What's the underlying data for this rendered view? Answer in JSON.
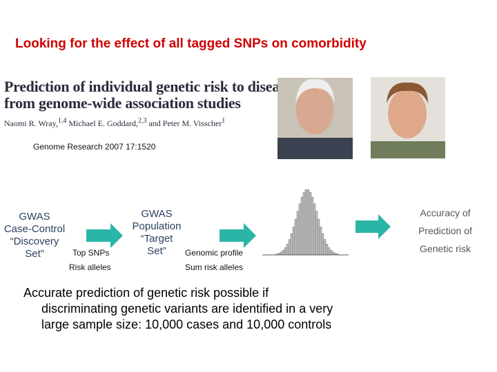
{
  "header": {
    "title": "Looking for the effect of all tagged SNPs on comorbidity"
  },
  "paper": {
    "title_lines": [
      "Prediction of individual genetic risk to disease",
      "from genome-wide association studies"
    ],
    "authors": [
      {
        "name": "Naomi R. Wray,",
        "sup": "1,4"
      },
      {
        "name": " Michael E. Goddard,",
        "sup": "2,3"
      },
      {
        "name": " and Peter M. Visscher",
        "sup": "1"
      }
    ],
    "citation": "Genome Research 2007 17:1520"
  },
  "flow": {
    "discovery": [
      "GWAS",
      "Case-Control",
      "“Discovery",
      "Set”"
    ],
    "step1": {
      "top": "Top SNPs",
      "bottom": "Risk alleles"
    },
    "target": [
      "GWAS",
      "Population",
      "“Target",
      "Set”"
    ],
    "step2": {
      "top": "Genomic profile",
      "bottom": "Sum risk alleles"
    },
    "result": [
      "Accuracy of",
      "Prediction of",
      "Genetic risk"
    ]
  },
  "conclusion": [
    "Accurate prediction of genetic risk possible if",
    "discriminating genetic variants are identified in a very",
    "large sample size: 10,000 cases and 10,000 controls"
  ]
}
